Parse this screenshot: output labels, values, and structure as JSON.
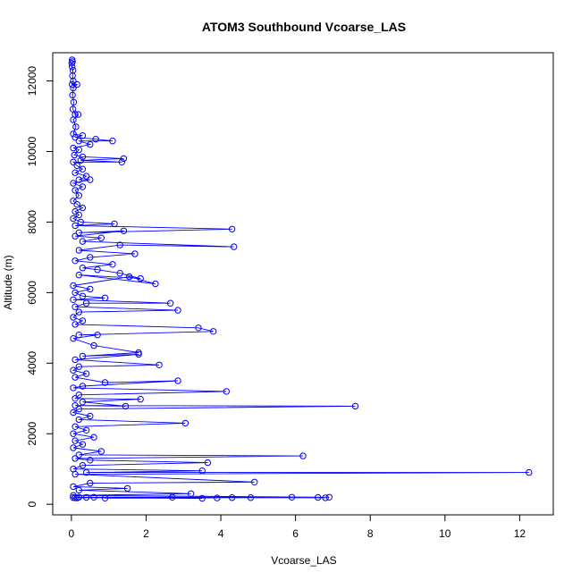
{
  "chart_data": {
    "type": "line",
    "title": "ATOM3 Southbound Vcoarse_LAS",
    "xlabel": "Vcoarse_LAS",
    "ylabel": "Altitude (m)",
    "xlim": [
      -0.5,
      12.9
    ],
    "ylim": [
      -300,
      12800
    ],
    "xticks": [
      0,
      2,
      4,
      6,
      8,
      10,
      12
    ],
    "yticks": [
      0,
      2000,
      4000,
      6000,
      8000,
      10000,
      12000
    ],
    "grid": false,
    "legend": "none",
    "marker": "open-circle",
    "colors": {
      "series": "#0000ff",
      "axes": "#000000"
    },
    "series": [
      {
        "values": [
          [
            0.02,
            12600
          ],
          [
            0.03,
            12550
          ],
          [
            0.01,
            12500
          ],
          [
            0.02,
            12400
          ],
          [
            0.04,
            12300
          ],
          [
            0.03,
            12150
          ],
          [
            0.05,
            12000
          ],
          [
            0.02,
            11900
          ],
          [
            0.15,
            11900
          ],
          [
            0.05,
            11800
          ],
          [
            0.03,
            11600
          ],
          [
            0.06,
            11400
          ],
          [
            0.04,
            11200
          ],
          [
            0.1,
            11050
          ],
          [
            0.18,
            11050
          ],
          [
            0.05,
            10900
          ],
          [
            0.12,
            10700
          ],
          [
            0.05,
            10500
          ],
          [
            0.3,
            10450
          ],
          [
            0.1,
            10400
          ],
          [
            0.65,
            10350
          ],
          [
            1.1,
            10300
          ],
          [
            0.2,
            10300
          ],
          [
            0.5,
            10200
          ],
          [
            0.05,
            10100
          ],
          [
            0.2,
            10050
          ],
          [
            0.08,
            9900
          ],
          [
            0.3,
            9850
          ],
          [
            1.4,
            9800
          ],
          [
            0.25,
            9750
          ],
          [
            1.35,
            9700
          ],
          [
            0.05,
            9700
          ],
          [
            0.15,
            9600
          ],
          [
            0.3,
            9500
          ],
          [
            0.1,
            9400
          ],
          [
            0.4,
            9300
          ],
          [
            0.2,
            9200
          ],
          [
            0.5,
            9200
          ],
          [
            0.05,
            9100
          ],
          [
            0.3,
            9000
          ],
          [
            0.1,
            8900
          ],
          [
            0.2,
            8750
          ],
          [
            0.05,
            8600
          ],
          [
            0.15,
            8500
          ],
          [
            0.3,
            8400
          ],
          [
            0.1,
            8300
          ],
          [
            0.2,
            8200
          ],
          [
            0.05,
            8100
          ],
          [
            0.25,
            8000
          ],
          [
            1.15,
            7950
          ],
          [
            0.1,
            7900
          ],
          [
            4.3,
            7800
          ],
          [
            0.2,
            7700
          ],
          [
            1.4,
            7750
          ],
          [
            0.1,
            7600
          ],
          [
            0.8,
            7550
          ],
          [
            0.3,
            7450
          ],
          [
            4.35,
            7300
          ],
          [
            1.3,
            7350
          ],
          [
            0.2,
            7200
          ],
          [
            1.7,
            7100
          ],
          [
            0.5,
            7000
          ],
          [
            0.1,
            6900
          ],
          [
            1.1,
            6800
          ],
          [
            0.3,
            6700
          ],
          [
            0.7,
            6650
          ],
          [
            1.3,
            6550
          ],
          [
            1.85,
            6400
          ],
          [
            0.2,
            6500
          ],
          [
            2.25,
            6250
          ],
          [
            1.55,
            6450
          ],
          [
            0.05,
            6200
          ],
          [
            0.5,
            6100
          ],
          [
            0.1,
            6000
          ],
          [
            0.3,
            5900
          ],
          [
            0.9,
            5850
          ],
          [
            0.05,
            5800
          ],
          [
            2.65,
            5700
          ],
          [
            0.4,
            5700
          ],
          [
            0.1,
            5600
          ],
          [
            2.85,
            5500
          ],
          [
            0.2,
            5450
          ],
          [
            0.05,
            5300
          ],
          [
            0.3,
            5200
          ],
          [
            0.1,
            5100
          ],
          [
            3.4,
            5000
          ],
          [
            3.8,
            4900
          ],
          [
            0.2,
            4800
          ],
          [
            0.7,
            4800
          ],
          [
            0.05,
            4700
          ],
          [
            0.6,
            4500
          ],
          [
            1.8,
            4300
          ],
          [
            0.3,
            4200
          ],
          [
            1.8,
            4250
          ],
          [
            0.1,
            4100
          ],
          [
            2.35,
            3950
          ],
          [
            0.2,
            3900
          ],
          [
            0.05,
            3800
          ],
          [
            0.4,
            3700
          ],
          [
            0.1,
            3600
          ],
          [
            0.9,
            3450
          ],
          [
            2.85,
            3500
          ],
          [
            0.3,
            3350
          ],
          [
            0.05,
            3300
          ],
          [
            4.15,
            3200
          ],
          [
            0.2,
            3100
          ],
          [
            0.1,
            3000
          ],
          [
            1.85,
            2980
          ],
          [
            0.3,
            2900
          ],
          [
            1.45,
            2780
          ],
          [
            0.1,
            2800
          ],
          [
            7.6,
            2780
          ],
          [
            0.2,
            2700
          ],
          [
            0.05,
            2600
          ],
          [
            0.5,
            2500
          ],
          [
            0.2,
            2400
          ],
          [
            3.05,
            2300
          ],
          [
            0.1,
            2200
          ],
          [
            0.4,
            2100
          ],
          [
            0.05,
            2000
          ],
          [
            0.6,
            1900
          ],
          [
            0.1,
            1800
          ],
          [
            0.3,
            1700
          ],
          [
            0.05,
            1600
          ],
          [
            0.8,
            1500
          ],
          [
            0.2,
            1400
          ],
          [
            6.2,
            1370
          ],
          [
            0.1,
            1300
          ],
          [
            0.5,
            1250
          ],
          [
            3.65,
            1180
          ],
          [
            0.3,
            1100
          ],
          [
            0.05,
            1000
          ],
          [
            3.5,
            950
          ],
          [
            0.4,
            900
          ],
          [
            12.25,
            900
          ],
          [
            0.1,
            850
          ],
          [
            4.9,
            630
          ],
          [
            0.5,
            600
          ],
          [
            0.05,
            500
          ],
          [
            1.5,
            450
          ],
          [
            0.2,
            400
          ],
          [
            3.2,
            300
          ],
          [
            0.05,
            250
          ],
          [
            6.9,
            200
          ],
          [
            0.1,
            190
          ],
          [
            5.9,
            200
          ],
          [
            0.4,
            195
          ],
          [
            4.3,
            190
          ],
          [
            0.15,
            180
          ],
          [
            6.6,
            195
          ],
          [
            0.6,
            200
          ],
          [
            3.5,
            170
          ],
          [
            0.1,
            185
          ],
          [
            2.7,
            200
          ],
          [
            0.9,
            175
          ],
          [
            4.8,
            190
          ],
          [
            0.2,
            200
          ],
          [
            6.8,
            185
          ],
          [
            0.05,
            190
          ],
          [
            3.9,
            180
          ]
        ]
      }
    ]
  }
}
